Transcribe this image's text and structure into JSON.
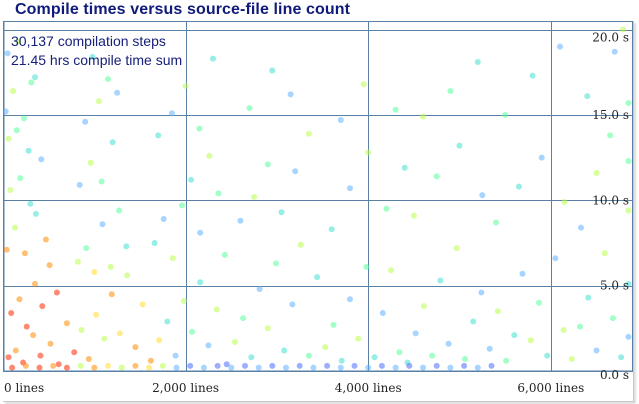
{
  "title": "Compile times versus source-file line count",
  "stats": [
    "30,137 compilation steps",
    "21.45 hrs compile time sum"
  ],
  "chart_data": {
    "type": "scatter",
    "title": "Compile times versus source-file line count",
    "xlabel": "",
    "ylabel": "",
    "xlim": [
      0,
      6900
    ],
    "ylim": [
      0,
      20.5
    ],
    "x_ticks": [
      0,
      2000,
      4000,
      6000
    ],
    "x_tick_labels": [
      "0 lines",
      "2,000 lines",
      "4,000 lines",
      "6,000 lines"
    ],
    "y_ticks": [
      0,
      5,
      10,
      15,
      20
    ],
    "y_tick_labels": [
      "0.0 s",
      "5.0 s",
      "10.0 s",
      "15.0 s",
      "20.0 s"
    ],
    "grid": true,
    "annotations": [
      "30,137 compilation steps",
      "21.45 hrs compile time sum"
    ],
    "points_note_colors": [
      "#ff2a00",
      "#ff8c00",
      "#ffdd33",
      "#b8ff4a",
      "#55ff99",
      "#40e0d0",
      "#5fb3ff",
      "#4f6bff"
    ],
    "points": [
      [
        60,
        0.8
      ],
      [
        140,
        1.2
      ],
      [
        220,
        0.5
      ],
      [
        330,
        2.1
      ],
      [
        410,
        0.9
      ],
      [
        520,
        1.6
      ],
      [
        610,
        0.4
      ],
      [
        700,
        2.8
      ],
      [
        90,
        3.4
      ],
      [
        180,
        4.2
      ],
      [
        260,
        2.6
      ],
      [
        350,
        5.1
      ],
      [
        430,
        3.8
      ],
      [
        510,
        6.2
      ],
      [
        590,
        4.6
      ],
      [
        40,
        7.1
      ],
      [
        130,
        8.4
      ],
      [
        240,
        6.9
      ],
      [
        360,
        9.2
      ],
      [
        470,
        7.7
      ],
      [
        80,
        10.6
      ],
      [
        190,
        11.3
      ],
      [
        300,
        9.8
      ],
      [
        420,
        12.4
      ],
      [
        60,
        13.6
      ],
      [
        150,
        14.1
      ],
      [
        280,
        12.9
      ],
      [
        30,
        15.2
      ],
      [
        110,
        16.4
      ],
      [
        230,
        14.8
      ],
      [
        350,
        17.2
      ],
      [
        50,
        18.6
      ],
      [
        170,
        19.3
      ],
      [
        310,
        16.9
      ],
      [
        780,
        1.1
      ],
      [
        860,
        2.4
      ],
      [
        940,
        0.7
      ],
      [
        1020,
        3.3
      ],
      [
        1110,
        1.9
      ],
      [
        1190,
        4.5
      ],
      [
        1280,
        2.2
      ],
      [
        1360,
        5.6
      ],
      [
        1450,
        1.4
      ],
      [
        1530,
        3.9
      ],
      [
        820,
        6.4
      ],
      [
        910,
        7.2
      ],
      [
        1000,
        5.8
      ],
      [
        1090,
        8.6
      ],
      [
        1180,
        6.1
      ],
      [
        1270,
        9.4
      ],
      [
        1350,
        7.3
      ],
      [
        840,
        10.9
      ],
      [
        960,
        12.2
      ],
      [
        1080,
        11.1
      ],
      [
        1200,
        13.4
      ],
      [
        900,
        14.6
      ],
      [
        1050,
        15.8
      ],
      [
        1150,
        17.1
      ],
      [
        980,
        18.4
      ],
      [
        1250,
        16.3
      ],
      [
        1620,
        0.6
      ],
      [
        1710,
        1.8
      ],
      [
        1800,
        2.9
      ],
      [
        1890,
        0.9
      ],
      [
        1980,
        4.1
      ],
      [
        2070,
        2.3
      ],
      [
        2160,
        5.2
      ],
      [
        2250,
        1.5
      ],
      [
        2340,
        3.6
      ],
      [
        2430,
        6.8
      ],
      [
        1660,
        7.5
      ],
      [
        1760,
        8.9
      ],
      [
        1860,
        6.6
      ],
      [
        1960,
        9.7
      ],
      [
        2060,
        11.2
      ],
      [
        2160,
        8.1
      ],
      [
        2260,
        12.6
      ],
      [
        2360,
        10.4
      ],
      [
        1700,
        13.8
      ],
      [
        1850,
        15.1
      ],
      [
        2000,
        16.7
      ],
      [
        2150,
        14.2
      ],
      [
        2300,
        18.3
      ],
      [
        2450,
        0.4
      ],
      [
        2540,
        1.7
      ],
      [
        2630,
        3.1
      ],
      [
        2720,
        0.8
      ],
      [
        2810,
        4.8
      ],
      [
        2900,
        2.5
      ],
      [
        2990,
        6.3
      ],
      [
        3080,
        1.2
      ],
      [
        3170,
        3.9
      ],
      [
        3260,
        7.4
      ],
      [
        3350,
        0.9
      ],
      [
        3440,
        5.5
      ],
      [
        2600,
        8.8
      ],
      [
        2750,
        10.2
      ],
      [
        2900,
        12.1
      ],
      [
        3050,
        9.3
      ],
      [
        3200,
        11.7
      ],
      [
        3350,
        13.9
      ],
      [
        2700,
        15.4
      ],
      [
        2950,
        17.6
      ],
      [
        3150,
        16.2
      ],
      [
        3530,
        1.4
      ],
      [
        3620,
        2.7
      ],
      [
        3710,
        0.6
      ],
      [
        3800,
        4.2
      ],
      [
        3890,
        1.9
      ],
      [
        3980,
        6.1
      ],
      [
        4070,
        0.8
      ],
      [
        4160,
        3.4
      ],
      [
        4250,
        5.9
      ],
      [
        4340,
        1.1
      ],
      [
        3600,
        8.3
      ],
      [
        3800,
        10.7
      ],
      [
        4000,
        12.8
      ],
      [
        4200,
        9.5
      ],
      [
        4400,
        11.9
      ],
      [
        3700,
        14.7
      ],
      [
        3950,
        16.8
      ],
      [
        4300,
        15.3
      ],
      [
        4430,
        0.5
      ],
      [
        4520,
        2.2
      ],
      [
        4610,
        3.8
      ],
      [
        4700,
        0.9
      ],
      [
        4790,
        5.3
      ],
      [
        4880,
        1.6
      ],
      [
        4970,
        7.2
      ],
      [
        5060,
        0.7
      ],
      [
        5150,
        2.9
      ],
      [
        5240,
        4.6
      ],
      [
        4500,
        9.1
      ],
      [
        4750,
        11.4
      ],
      [
        5000,
        13.2
      ],
      [
        5250,
        10.3
      ],
      [
        4600,
        14.9
      ],
      [
        4900,
        16.4
      ],
      [
        5200,
        18.1
      ],
      [
        5330,
        1.3
      ],
      [
        5420,
        3.5
      ],
      [
        5510,
        0.6
      ],
      [
        5600,
        2.1
      ],
      [
        5690,
        5.7
      ],
      [
        5780,
        1.8
      ],
      [
        5870,
        4.0
      ],
      [
        5960,
        0.9
      ],
      [
        6050,
        6.6
      ],
      [
        6140,
        2.4
      ],
      [
        5400,
        8.7
      ],
      [
        5650,
        10.8
      ],
      [
        5900,
        12.5
      ],
      [
        6150,
        9.9
      ],
      [
        5500,
        15.0
      ],
      [
        5800,
        17.3
      ],
      [
        6100,
        19.0
      ],
      [
        6230,
        0.7
      ],
      [
        6320,
        2.6
      ],
      [
        6410,
        4.3
      ],
      [
        6500,
        1.2
      ],
      [
        6590,
        6.9
      ],
      [
        6680,
        3.1
      ],
      [
        6770,
        0.8
      ],
      [
        6330,
        8.4
      ],
      [
        6500,
        11.6
      ],
      [
        6650,
        13.8
      ],
      [
        6400,
        16.1
      ],
      [
        6700,
        18.7
      ],
      [
        6790,
        20.0
      ],
      [
        6850,
        12.3
      ],
      [
        6850,
        5.1
      ],
      [
        6850,
        2.0
      ],
      [
        6850,
        9.4
      ],
      [
        6850,
        15.7
      ],
      [
        100,
        0.2
      ],
      [
        250,
        0.3
      ],
      [
        400,
        0.2
      ],
      [
        550,
        0.3
      ],
      [
        700,
        0.2
      ],
      [
        850,
        0.3
      ],
      [
        1000,
        0.2
      ],
      [
        1150,
        0.3
      ],
      [
        1300,
        0.2
      ],
      [
        1450,
        0.3
      ],
      [
        1600,
        0.2
      ],
      [
        1750,
        0.3
      ],
      [
        1900,
        0.2
      ],
      [
        2050,
        0.3
      ],
      [
        2200,
        0.2
      ],
      [
        2350,
        0.3
      ],
      [
        2500,
        0.2
      ],
      [
        2650,
        0.3
      ],
      [
        2800,
        0.2
      ],
      [
        2950,
        0.3
      ],
      [
        3100,
        0.2
      ],
      [
        3250,
        0.3
      ],
      [
        3400,
        0.2
      ],
      [
        3550,
        0.3
      ],
      [
        3700,
        0.2
      ],
      [
        3850,
        0.3
      ],
      [
        4000,
        0.2
      ],
      [
        4150,
        0.3
      ],
      [
        4300,
        0.2
      ],
      [
        4450,
        0.3
      ],
      [
        4600,
        0.2
      ],
      [
        4750,
        0.3
      ],
      [
        4900,
        0.2
      ],
      [
        5050,
        0.3
      ],
      [
        5200,
        0.2
      ],
      [
        5350,
        0.3
      ]
    ]
  }
}
